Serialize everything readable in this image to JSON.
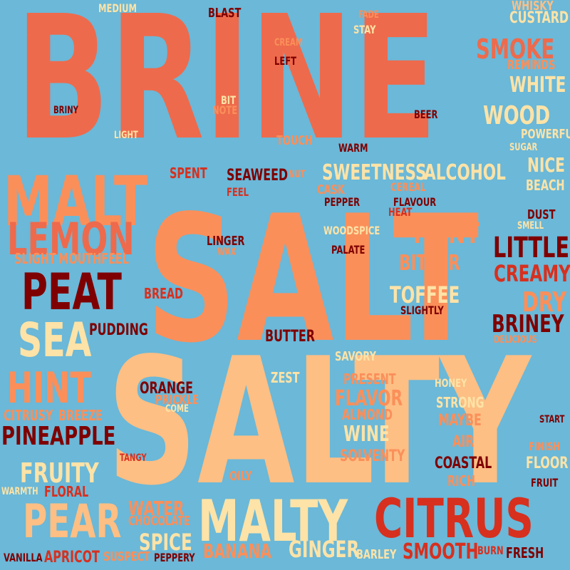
{
  "palette": {
    "background": "#6bb8d8",
    "red": "#ee6a4c",
    "orange": "#fb8f5a",
    "peach": "#fdbf84",
    "cream": "#fde3a7",
    "darkred": "#7f0000",
    "crimson": "#d7301f"
  },
  "words": [
    {
      "t": "BRINE",
      "c": "red"
    },
    {
      "t": "SALT",
      "c": "orange"
    },
    {
      "t": "SALTY",
      "c": "peach"
    },
    {
      "t": "MALT",
      "c": "orange"
    },
    {
      "t": "LEMON",
      "c": "red"
    },
    {
      "t": "PEAT",
      "c": "darkred"
    },
    {
      "t": "SEA",
      "c": "cream"
    },
    {
      "t": "HINT",
      "c": "orange"
    },
    {
      "t": "PEAR",
      "c": "peach"
    },
    {
      "t": "MALTY",
      "c": "cream"
    },
    {
      "t": "CITRUS",
      "c": "crimson"
    },
    {
      "t": "PINEAPPLE",
      "c": "darkred"
    },
    {
      "t": "FRUITY",
      "c": "cream"
    },
    {
      "t": "SMOKE",
      "c": "red"
    },
    {
      "t": "WOOD",
      "c": "cream"
    },
    {
      "t": "WHITE",
      "c": "cream"
    },
    {
      "t": "SWEETNESS",
      "c": "cream"
    },
    {
      "t": "ALCOHOL",
      "c": "cream"
    },
    {
      "t": "LITTLE",
      "c": "darkred"
    },
    {
      "t": "CREAMY",
      "c": "crimson"
    },
    {
      "t": "DRY",
      "c": "orange"
    },
    {
      "t": "BRINEY",
      "c": "darkred"
    },
    {
      "t": "FAINT",
      "c": "orange"
    },
    {
      "t": "TOFFEE",
      "c": "cream"
    },
    {
      "t": "BITTER",
      "c": "orange"
    },
    {
      "t": "FLAVOR",
      "c": "orange"
    },
    {
      "t": "WINE",
      "c": "cream"
    },
    {
      "t": "WATER",
      "c": "orange"
    },
    {
      "t": "SPICE",
      "c": "cream"
    },
    {
      "t": "GINGER",
      "c": "cream"
    },
    {
      "t": "BANANA",
      "c": "orange"
    },
    {
      "t": "SMOOTH",
      "c": "crimson"
    },
    {
      "t": "CUSTARD",
      "c": "cream"
    },
    {
      "t": "WHISKY",
      "c": "peach"
    },
    {
      "t": "NICE",
      "c": "cream"
    },
    {
      "t": "BEACH",
      "c": "cream"
    },
    {
      "t": "SEAWEED",
      "c": "darkred"
    },
    {
      "t": "SPENT",
      "c": "crimson"
    },
    {
      "t": "ORANGE",
      "c": "darkred"
    },
    {
      "t": "PUDDING",
      "c": "darkred"
    },
    {
      "t": "BREAD",
      "c": "crimson"
    },
    {
      "t": "BUTTER",
      "c": "darkred"
    },
    {
      "t": "ZEST",
      "c": "cream"
    },
    {
      "t": "COASTAL",
      "c": "darkred"
    },
    {
      "t": "RICH",
      "c": "orange"
    },
    {
      "t": "FLOOR",
      "c": "cream"
    },
    {
      "t": "FRESH",
      "c": "darkred"
    },
    {
      "t": "SOLVENTY",
      "c": "orange"
    },
    {
      "t": "APRICOT",
      "c": "crimson"
    },
    {
      "t": "FLORAL",
      "c": "crimson"
    },
    {
      "t": "MOUTHFEEL",
      "c": "orange"
    },
    {
      "t": "SLIGHT",
      "c": "orange"
    },
    {
      "t": "BREEZE",
      "c": "orange"
    },
    {
      "t": "CITRUSY",
      "c": "orange"
    },
    {
      "t": "STRONG",
      "c": "cream"
    },
    {
      "t": "MAYBE",
      "c": "orange"
    },
    {
      "t": "ALMOND",
      "c": "orange"
    },
    {
      "t": "AIR",
      "c": "orange"
    },
    {
      "t": "PRESENT",
      "c": "orange"
    },
    {
      "t": "PRICKLE",
      "c": "orange"
    },
    {
      "t": "OILY",
      "c": "orange"
    },
    {
      "t": "CHOCOLATE",
      "c": "orange"
    },
    {
      "t": "SUSPECT",
      "c": "orange"
    },
    {
      "t": "PEPPERY",
      "c": "darkred"
    },
    {
      "t": "VANILLA",
      "c": "darkred"
    },
    {
      "t": "WARMTH",
      "c": "cream"
    },
    {
      "t": "BARLEY",
      "c": "cream"
    },
    {
      "t": "BURN",
      "c": "crimson"
    },
    {
      "t": "FRUIT",
      "c": "darkred"
    },
    {
      "t": "FINISH",
      "c": "orange"
    },
    {
      "t": "START",
      "c": "darkred"
    },
    {
      "t": "HONEY",
      "c": "cream"
    },
    {
      "t": "SAVORY",
      "c": "cream"
    },
    {
      "t": "SLIGHTLY",
      "c": "darkred"
    },
    {
      "t": "DELICIOUS",
      "c": "orange"
    },
    {
      "t": "WOODSPICE",
      "c": "cream"
    },
    {
      "t": "PALATE",
      "c": "darkred"
    },
    {
      "t": "HEAT",
      "c": "crimson"
    },
    {
      "t": "FLAVOUR",
      "c": "darkred"
    },
    {
      "t": "CEREAL",
      "c": "orange"
    },
    {
      "t": "PEPPER",
      "c": "darkred"
    },
    {
      "t": "CASK",
      "c": "orange"
    },
    {
      "t": "NUT",
      "c": "orange"
    },
    {
      "t": "FEEL",
      "c": "crimson"
    },
    {
      "t": "LINGER",
      "c": "darkred"
    },
    {
      "t": "WAX",
      "c": "orange"
    },
    {
      "t": "WARM",
      "c": "darkred"
    },
    {
      "t": "TOUCH",
      "c": "orange"
    },
    {
      "t": "BEER",
      "c": "darkred"
    },
    {
      "t": "DUST",
      "c": "darkred"
    },
    {
      "t": "SMELL",
      "c": "cream"
    },
    {
      "t": "POWERFUL",
      "c": "cream"
    },
    {
      "t": "SUGAR",
      "c": "cream"
    },
    {
      "t": "REMINDS",
      "c": "orange"
    },
    {
      "t": "MEDIUM",
      "c": "cream"
    },
    {
      "t": "BLAST",
      "c": "darkred"
    },
    {
      "t": "CREAM",
      "c": "orange"
    },
    {
      "t": "LEFT",
      "c": "darkred"
    },
    {
      "t": "FADE",
      "c": "orange"
    },
    {
      "t": "STAY",
      "c": "cream"
    },
    {
      "t": "BRINY",
      "c": "darkred"
    },
    {
      "t": "LIGHT",
      "c": "cream"
    },
    {
      "t": "BIT",
      "c": "cream"
    },
    {
      "t": "NOTE",
      "c": "orange"
    },
    {
      "t": "TANGY",
      "c": "crimson"
    },
    {
      "t": "COME",
      "c": "cream"
    },
    {
      "t": "DIRTY",
      "c": "orange"
    }
  ]
}
